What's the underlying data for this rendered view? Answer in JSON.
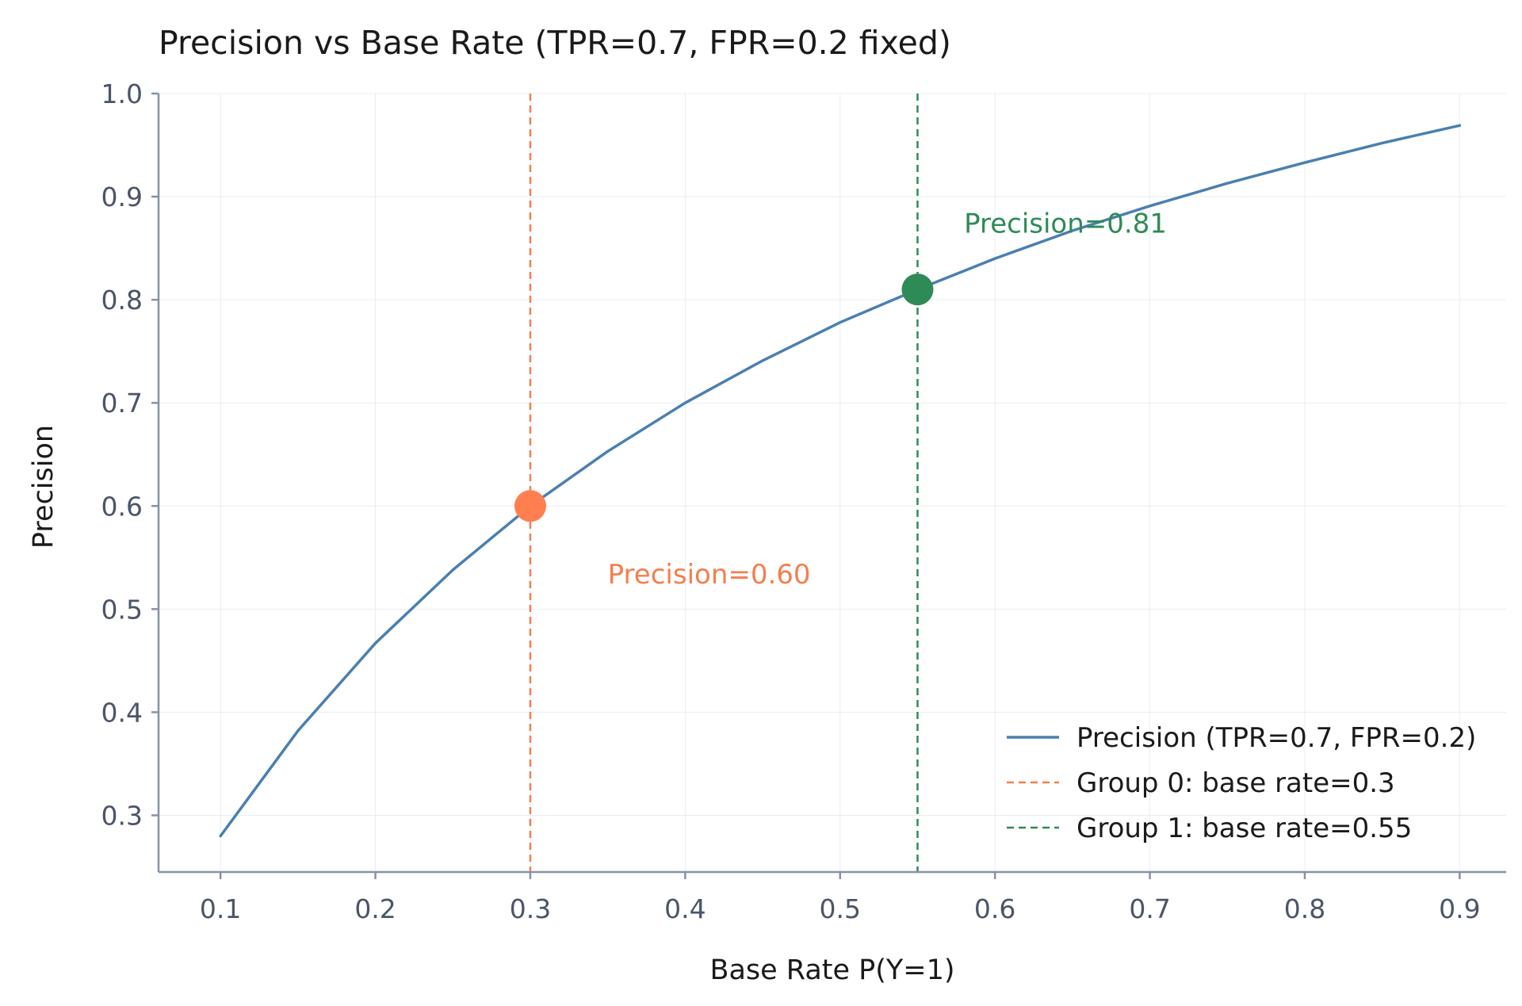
{
  "chart_data": {
    "type": "line",
    "title": "Precision vs Base Rate (TPR=0.7, FPR=0.2 fixed)",
    "xlabel": "Base Rate P(Y=1)",
    "ylabel": "Precision",
    "xlim": [
      0.06,
      0.93
    ],
    "ylim": [
      0.245,
      1.0
    ],
    "xticks": [
      0.1,
      0.2,
      0.3,
      0.4,
      0.5,
      0.6,
      0.7,
      0.8,
      0.9
    ],
    "xtick_labels": [
      "0.1",
      "0.2",
      "0.3",
      "0.4",
      "0.5",
      "0.6",
      "0.7",
      "0.8",
      "0.9"
    ],
    "yticks": [
      0.3,
      0.4,
      0.5,
      0.6,
      0.7,
      0.8,
      0.9,
      1.0
    ],
    "ytick_labels": [
      "0.3",
      "0.4",
      "0.5",
      "0.6",
      "0.7",
      "0.8",
      "0.9",
      "1.0"
    ],
    "grid": true,
    "legend_position": "bottom-right",
    "series": [
      {
        "name": "Precision (TPR=0.7, FPR=0.2)",
        "style": "solid",
        "color": "#4a7fb0",
        "x": [
          0.1,
          0.15,
          0.2,
          0.25,
          0.3,
          0.35,
          0.4,
          0.45,
          0.5,
          0.55,
          0.6,
          0.65,
          0.7,
          0.75,
          0.8,
          0.85,
          0.9
        ],
        "y": [
          0.28,
          0.382,
          0.467,
          0.538,
          0.6,
          0.653,
          0.7,
          0.741,
          0.778,
          0.81,
          0.84,
          0.867,
          0.891,
          0.913,
          0.933,
          0.952,
          0.969
        ]
      }
    ],
    "reference_lines": [
      {
        "name": "Group 0: base rate=0.3",
        "x": 0.3,
        "style": "dashed",
        "color": "#f47e4e"
      },
      {
        "name": "Group 1: base rate=0.55",
        "x": 0.55,
        "style": "dashed",
        "color": "#2e8b57"
      }
    ],
    "markers": [
      {
        "x": 0.3,
        "y": 0.6,
        "color": "#ff7f50"
      },
      {
        "x": 0.55,
        "y": 0.81,
        "color": "#2e8b57"
      }
    ],
    "annotations": [
      {
        "text": "Precision=0.60",
        "x": 0.35,
        "y": 0.525,
        "color": "#f47e4e"
      },
      {
        "text": "Precision=0.81",
        "x": 0.58,
        "y": 0.865,
        "color": "#2e8b57"
      }
    ]
  }
}
